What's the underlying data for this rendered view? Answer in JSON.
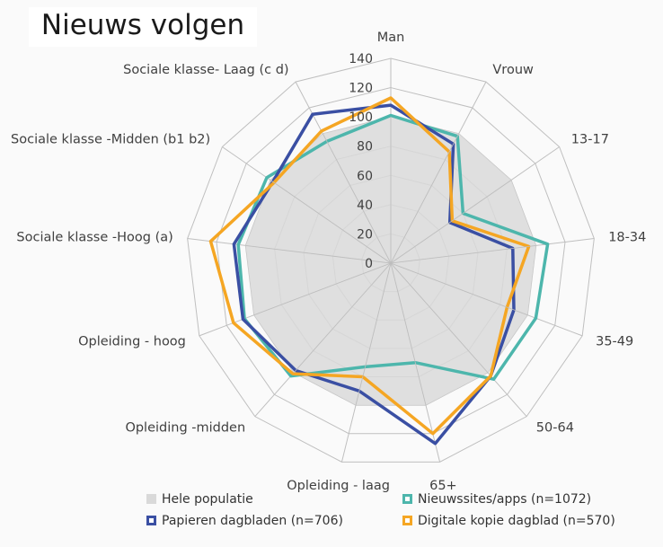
{
  "title": "Nieuws volgen",
  "chart_data": {
    "type": "radar",
    "categories": [
      "Man",
      "Vrouw",
      "13-17",
      "18-34",
      "35-49",
      "50-64",
      "65+",
      "Opleiding - laag",
      "Opleiding -midden",
      "Opleiding - hoog",
      "Sociale klasse -Hoog (a)",
      "Sociale klasse -Midden (b1 b2)",
      "Sociale klasse- Laag (c d)"
    ],
    "radial_ticks": [
      0,
      20,
      40,
      60,
      80,
      100,
      120,
      140
    ],
    "rlim": [
      0,
      140
    ],
    "grid": true,
    "legend_position": "bottom",
    "series": [
      {
        "name": "Hele populatie",
        "color": "#d9d9d9",
        "style": "filled",
        "values": [
          100,
          100,
          100,
          100,
          100,
          100,
          100,
          100,
          100,
          100,
          100,
          100,
          100
        ]
      },
      {
        "name": "Nieuwssites/apps (n=1072)",
        "color": "#4db6ac",
        "style": "line",
        "values": [
          101,
          98,
          60,
          108,
          106,
          106,
          70,
          73,
          103,
          107,
          105,
          103,
          94
        ]
      },
      {
        "name": "Papieren dagbladen (n=706)",
        "color": "#3a4fa3",
        "style": "line",
        "values": [
          108,
          92,
          49,
          84,
          90,
          103,
          127,
          90,
          98,
          108,
          108,
          98,
          115
        ]
      },
      {
        "name": "Digitale kopie dagblad (n=570)",
        "color": "#f5a623",
        "style": "line",
        "values": [
          113,
          86,
          51,
          95,
          85,
          103,
          120,
          80,
          101,
          115,
          124,
          97,
          102
        ]
      }
    ]
  }
}
